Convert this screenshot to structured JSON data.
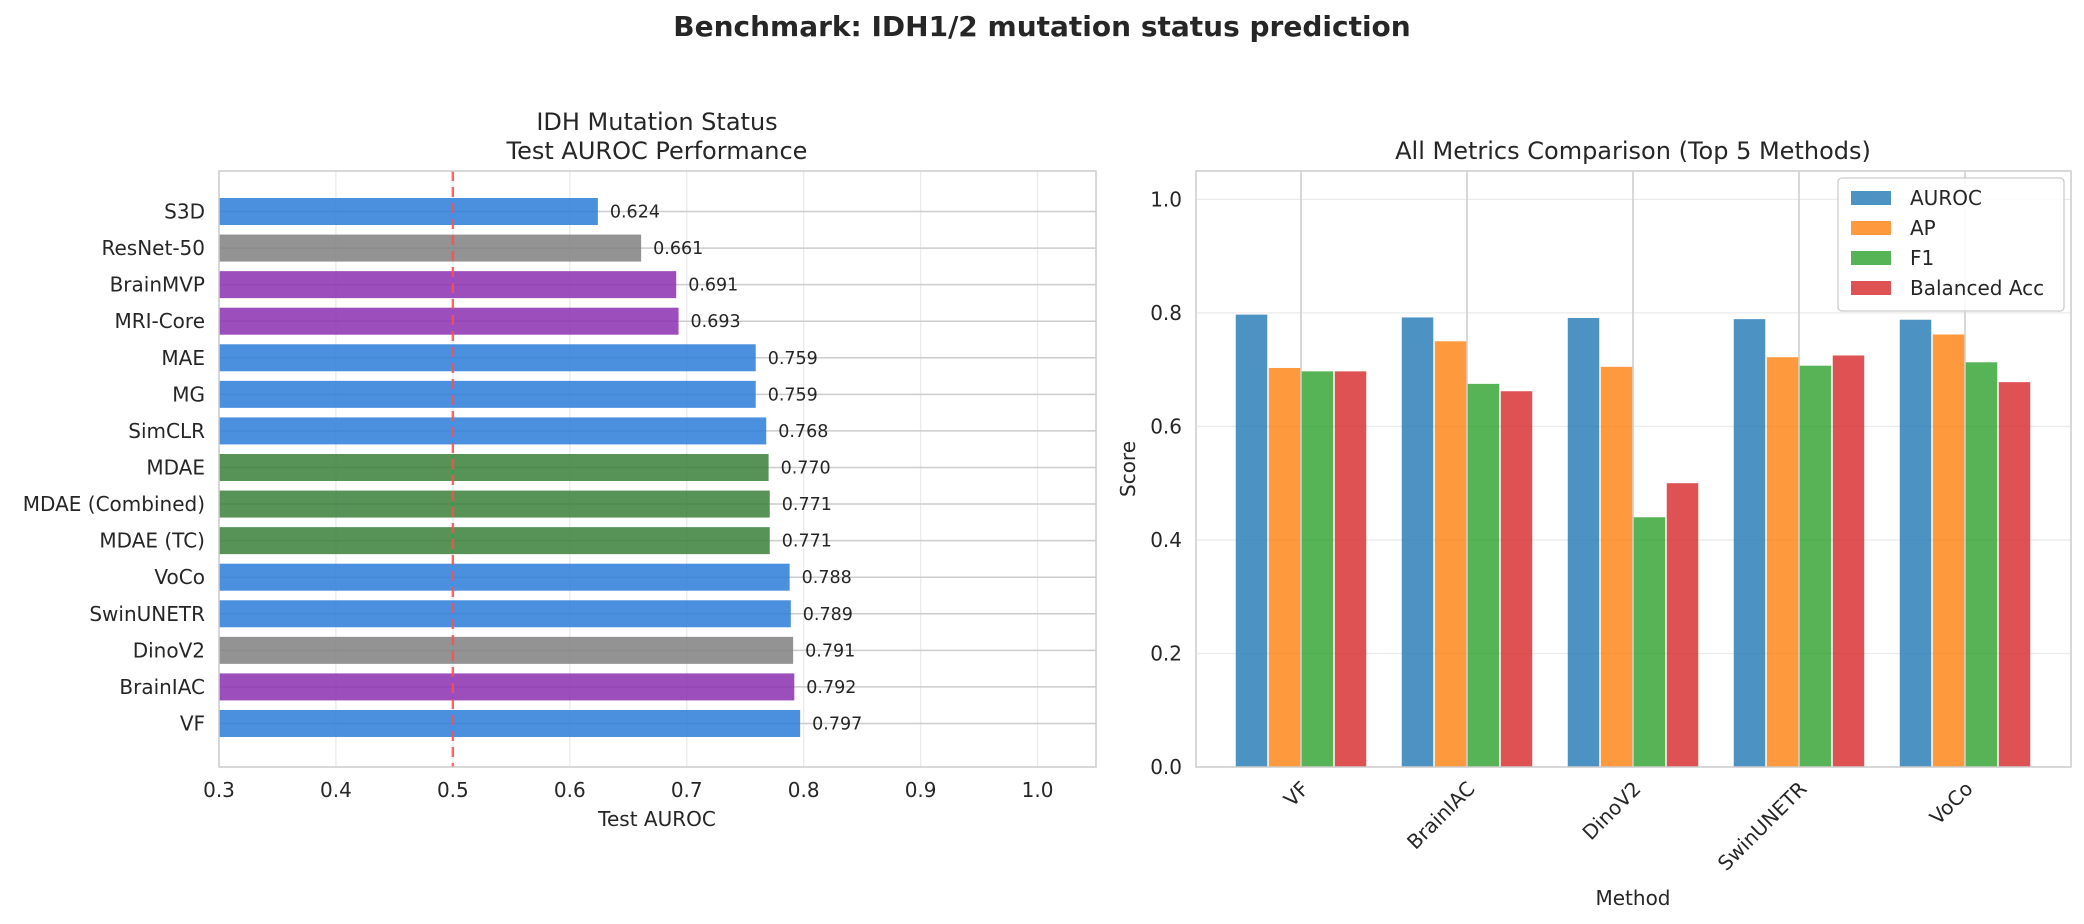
{
  "figure": {
    "suptitle": "Benchmark: IDH1/2 mutation status prediction"
  },
  "chart_data": [
    {
      "type": "bar",
      "orientation": "horizontal",
      "title_lines": [
        "IDH Mutation Status",
        "Test AUROC Performance"
      ],
      "xlabel": "Test AUROC",
      "ylabel": "",
      "xlim": [
        0.3,
        1.05
      ],
      "xticks": [
        "0.3",
        "0.4",
        "0.5",
        "0.6",
        "0.7",
        "0.8",
        "0.9",
        "1.0"
      ],
      "reference_line": {
        "x": 0.5,
        "style": "dashed",
        "color": "#ff4d4d"
      },
      "grid": true,
      "categories": [
        "S3D",
        "ResNet-50",
        "BrainMVP",
        "MRI-Core",
        "MAE",
        "MG",
        "SimCLR",
        "MDAE",
        "MDAE (Combined)",
        "MDAE (TC)",
        "VoCo",
        "SwinUNETR",
        "DinoV2",
        "BrainIAC",
        "VF"
      ],
      "values": [
        0.624,
        0.661,
        0.691,
        0.693,
        0.759,
        0.759,
        0.768,
        0.77,
        0.771,
        0.771,
        0.788,
        0.789,
        0.791,
        0.792,
        0.797
      ],
      "value_labels": [
        "0.624",
        "0.661",
        "0.691",
        "0.693",
        "0.759",
        "0.759",
        "0.768",
        "0.770",
        "0.771",
        "0.771",
        "0.788",
        "0.789",
        "0.791",
        "0.792",
        "0.797"
      ],
      "bar_colors": [
        "#2b7bd9",
        "#808080",
        "#8a2fb0",
        "#8a2fb0",
        "#2b7bd9",
        "#2b7bd9",
        "#2b7bd9",
        "#3a7f3a",
        "#3a7f3a",
        "#3a7f3a",
        "#2b7bd9",
        "#2b7bd9",
        "#808080",
        "#8a2fb0",
        "#2b7bd9"
      ]
    },
    {
      "type": "bar",
      "orientation": "vertical",
      "title": "All Metrics Comparison (Top 5 Methods)",
      "xlabel": "Method",
      "ylabel": "Score",
      "ylim": [
        0,
        1.05
      ],
      "yticks": [
        "0.0",
        "0.2",
        "0.4",
        "0.6",
        "0.8",
        "1.0"
      ],
      "grid": true,
      "legend_position": "top-right",
      "categories": [
        "VF",
        "BrainIAC",
        "DinoV2",
        "SwinUNETR",
        "VoCo"
      ],
      "series": [
        {
          "name": "AUROC",
          "color": "#1f77b4",
          "values": [
            0.797,
            0.792,
            0.791,
            0.789,
            0.788
          ]
        },
        {
          "name": "AP",
          "color": "#ff7f0e",
          "values": [
            0.703,
            0.75,
            0.705,
            0.722,
            0.762
          ]
        },
        {
          "name": "F1",
          "color": "#2ca02c",
          "values": [
            0.697,
            0.675,
            0.44,
            0.707,
            0.713
          ]
        },
        {
          "name": "Balanced Acc",
          "color": "#d62728",
          "values": [
            0.697,
            0.662,
            0.5,
            0.725,
            0.678
          ]
        }
      ]
    }
  ]
}
